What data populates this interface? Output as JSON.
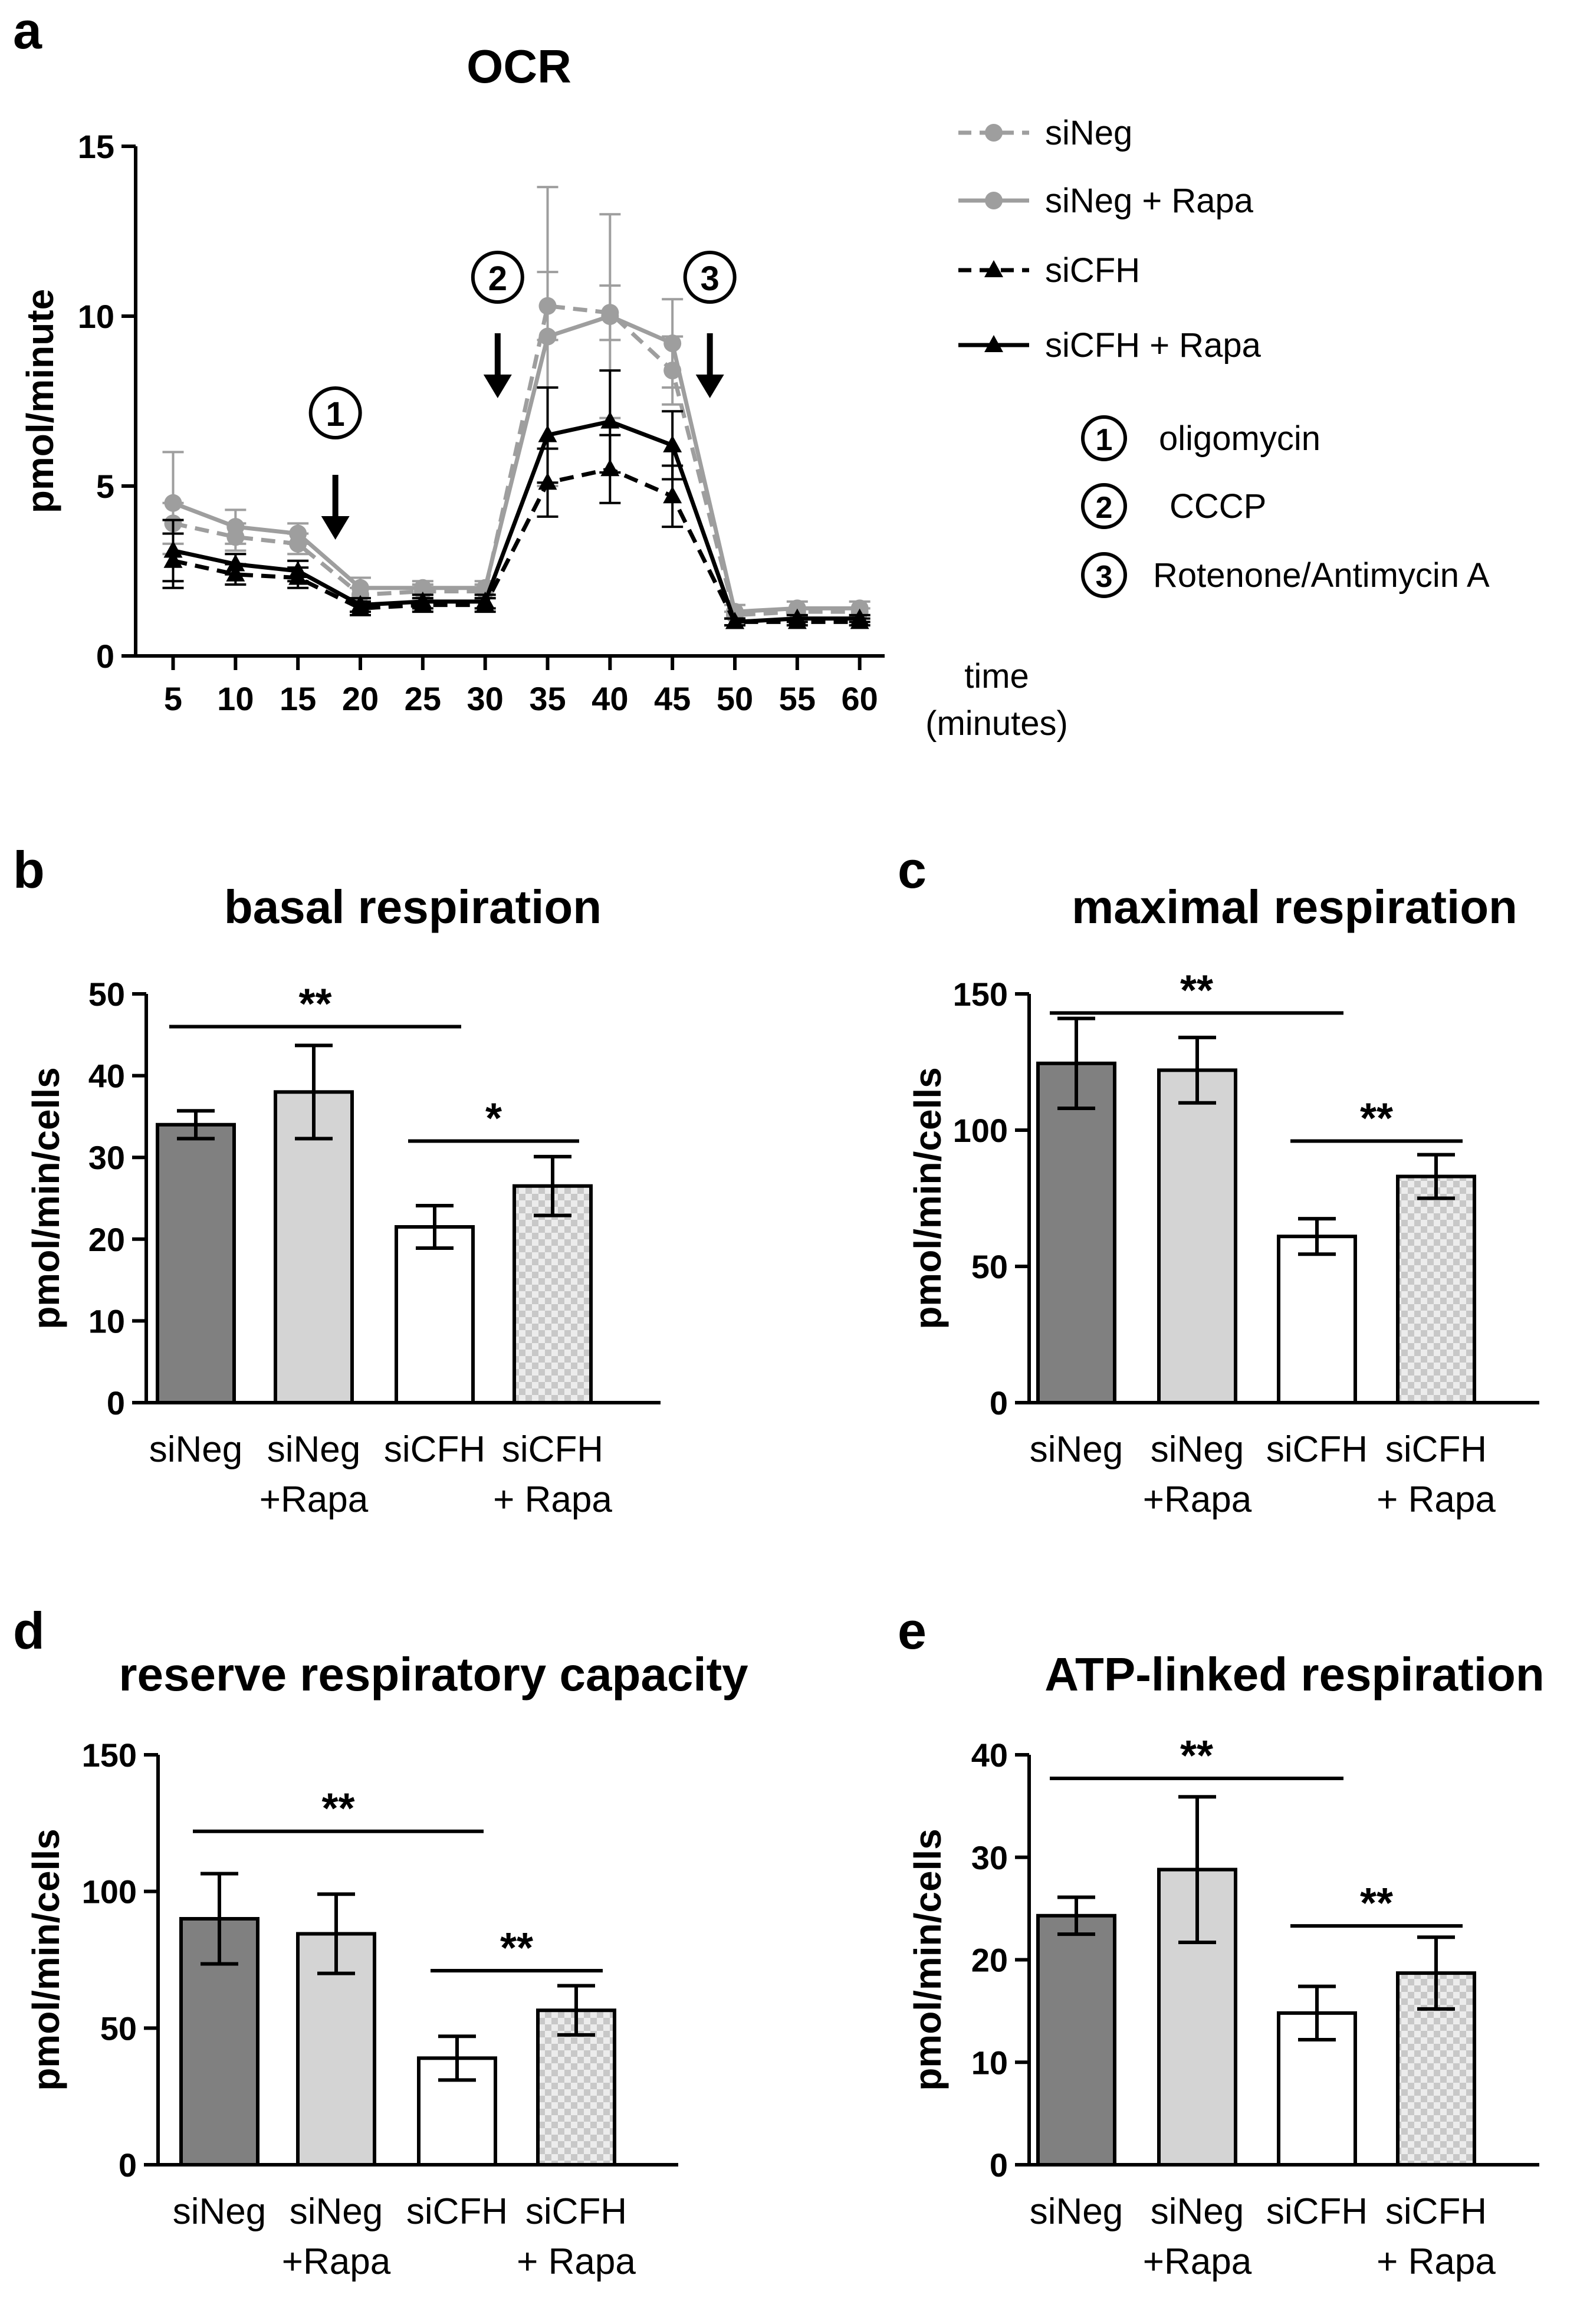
{
  "chart_data": [
    {
      "panel": "a",
      "type": "line",
      "title": "OCR",
      "ylabel": "pmol/minute",
      "xlabel_line1": "time",
      "xlabel_line2": "(minutes)",
      "ylim": [
        0,
        15
      ],
      "yticks": [
        0,
        5,
        10,
        15
      ],
      "x": [
        5,
        10,
        15,
        20,
        25,
        30,
        35,
        40,
        45,
        50,
        55,
        60
      ],
      "series": [
        {
          "name": "siNeg",
          "color": "#9e9e9e",
          "dash": true,
          "marker": "circle",
          "values": [
            3.9,
            3.5,
            3.3,
            1.8,
            1.9,
            1.9,
            10.3,
            10.1,
            8.4,
            1.2,
            1.3,
            1.3
          ],
          "errors": [
            0.6,
            0.4,
            0.3,
            0.2,
            0.2,
            0.2,
            1.0,
            0.8,
            1.0,
            0.1,
            0.1,
            0.1
          ]
        },
        {
          "name": "siNeg + Rapa",
          "color": "#9e9e9e",
          "dash": false,
          "marker": "circle",
          "values": [
            4.5,
            3.8,
            3.6,
            2.0,
            2.0,
            2.0,
            9.4,
            10.0,
            9.2,
            1.3,
            1.4,
            1.4
          ],
          "errors": [
            1.5,
            0.5,
            0.3,
            0.3,
            0.2,
            0.2,
            4.4,
            3.0,
            1.3,
            0.2,
            0.2,
            0.2
          ]
        },
        {
          "name": "siCFH",
          "color": "#000000",
          "dash": true,
          "marker": "triangle",
          "values": [
            2.8,
            2.4,
            2.3,
            1.4,
            1.5,
            1.5,
            5.1,
            5.5,
            4.7,
            1.0,
            1.0,
            1.0
          ],
          "errors": [
            0.8,
            0.3,
            0.3,
            0.2,
            0.2,
            0.2,
            1.0,
            1.0,
            0.9,
            0.1,
            0.1,
            0.1
          ]
        },
        {
          "name": "siCFH + Rapa",
          "color": "#000000",
          "dash": false,
          "marker": "triangle",
          "values": [
            3.1,
            2.7,
            2.5,
            1.5,
            1.6,
            1.6,
            6.5,
            6.9,
            6.2,
            1.0,
            1.1,
            1.1
          ],
          "errors": [
            0.9,
            0.3,
            0.3,
            0.2,
            0.2,
            0.2,
            1.4,
            1.5,
            1.0,
            0.1,
            0.1,
            0.1
          ]
        }
      ],
      "injections": [
        {
          "number": "1",
          "at_minute": 18,
          "label": "oligomycin"
        },
        {
          "number": "2",
          "at_minute": 31,
          "label": "CCCP"
        },
        {
          "number": "3",
          "at_minute": 48,
          "label": "Rotenone/Antimycin A"
        }
      ]
    },
    {
      "panel": "b",
      "type": "bar",
      "title": "basal respiration",
      "ylabel": "pmol/min/cells",
      "ylim": [
        0,
        50
      ],
      "yticks": [
        0,
        10,
        20,
        30,
        40,
        50
      ],
      "categories": [
        [
          "siNeg",
          ""
        ],
        [
          "siNeg",
          "+Rapa"
        ],
        [
          "siCFH",
          ""
        ],
        [
          "siCFH",
          "+ Rapa"
        ]
      ],
      "values": [
        34.0,
        38.0,
        21.5,
        26.5
      ],
      "errors": [
        1.7,
        5.7,
        2.6,
        3.6
      ],
      "significance": [
        {
          "from": 0,
          "to": 2,
          "y": 46,
          "label": "**"
        },
        {
          "from": 2,
          "to": 3,
          "y": 32,
          "label": "*"
        }
      ]
    },
    {
      "panel": "c",
      "type": "bar",
      "title": "maximal respiration",
      "ylabel": "pmol/min/cells",
      "ylim": [
        0,
        150
      ],
      "yticks": [
        0,
        50,
        100,
        150
      ],
      "categories": [
        [
          "siNeg",
          ""
        ],
        [
          "siNeg",
          "+Rapa"
        ],
        [
          "siCFH",
          ""
        ],
        [
          "siCFH",
          "+ Rapa"
        ]
      ],
      "values": [
        124.5,
        122.0,
        61.0,
        83.0
      ],
      "errors": [
        16.5,
        12.0,
        6.5,
        8.0
      ],
      "significance": [
        {
          "from": 0,
          "to": 2,
          "y": 143,
          "label": "**"
        },
        {
          "from": 2,
          "to": 3,
          "y": 96,
          "label": "**"
        }
      ]
    },
    {
      "panel": "d",
      "type": "bar",
      "title": "reserve respiratory capacity",
      "ylabel": "pmol/min/cells",
      "ylim": [
        0,
        150
      ],
      "yticks": [
        0,
        50,
        100,
        150
      ],
      "categories": [
        [
          "siNeg",
          ""
        ],
        [
          "siNeg",
          "+Rapa"
        ],
        [
          "siCFH",
          ""
        ],
        [
          "siCFH",
          "+ Rapa"
        ]
      ],
      "values": [
        90.0,
        84.5,
        39.0,
        56.5
      ],
      "errors": [
        16.5,
        14.5,
        8.0,
        9.0
      ],
      "significance": [
        {
          "from": 0,
          "to": 2,
          "y": 122,
          "label": "**"
        },
        {
          "from": 2,
          "to": 3,
          "y": 71,
          "label": "**"
        }
      ]
    },
    {
      "panel": "e",
      "type": "bar",
      "title": "ATP-linked respiration",
      "ylabel": "pmol/min/cells",
      "ylim": [
        0,
        40
      ],
      "yticks": [
        0,
        10,
        20,
        30,
        40
      ],
      "categories": [
        [
          "siNeg",
          ""
        ],
        [
          "siNeg",
          "+Rapa"
        ],
        [
          "siCFH",
          ""
        ],
        [
          "siCFH",
          "+ Rapa"
        ]
      ],
      "values": [
        24.3,
        28.8,
        14.8,
        18.7
      ],
      "errors": [
        1.8,
        7.1,
        2.6,
        3.5
      ],
      "significance": [
        {
          "from": 0,
          "to": 2,
          "y": 37.7,
          "label": "**"
        },
        {
          "from": 2,
          "to": 3,
          "y": 23.3,
          "label": "**"
        }
      ]
    }
  ],
  "colors": {
    "bar_fills": [
      "#808080",
      "#d4d4d4",
      "#ffffff",
      "checker"
    ],
    "checker_light": "#ececec",
    "checker_dark": "#c8c8c8"
  }
}
